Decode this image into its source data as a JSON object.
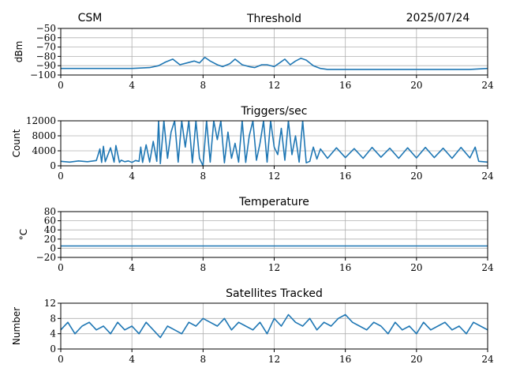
{
  "header": {
    "left_label": "CSM",
    "date": "2025/07/24"
  },
  "colors": {
    "series": "#1f77b4"
  },
  "chart_data": [
    {
      "type": "line",
      "title": "Threshold",
      "xlabel": "",
      "ylabel": "dBm",
      "xlim": [
        0,
        24
      ],
      "ylim": [
        -100,
        -50
      ],
      "xticks": [
        0,
        4,
        8,
        12,
        16,
        20,
        24
      ],
      "yticks": [
        -100,
        -90,
        -80,
        -70,
        -60,
        -50
      ],
      "ytick_labels": [
        "−100",
        "−90",
        "−80",
        "−70",
        "−60",
        "−50"
      ],
      "grid": true,
      "series": [
        {
          "x": [
            0,
            1,
            2,
            3,
            4,
            5,
            5.5,
            5.9,
            6.3,
            6.7,
            7.1,
            7.5,
            7.8,
            8.1,
            8.4,
            8.8,
            9.1,
            9.5,
            9.8,
            10.2,
            10.6,
            10.9,
            11.3,
            11.6,
            12.0,
            12.3,
            12.6,
            12.9,
            13.2,
            13.5,
            13.8,
            14.2,
            14.6,
            15,
            16,
            17,
            18,
            19,
            20,
            21,
            22,
            23,
            24
          ],
          "y": [
            -93,
            -93,
            -93,
            -93,
            -93,
            -92,
            -90,
            -86,
            -83,
            -89,
            -87,
            -85,
            -87,
            -81,
            -85,
            -89,
            -91,
            -88,
            -83,
            -89,
            -91,
            -92,
            -89,
            -89,
            -91,
            -87,
            -83,
            -89,
            -85,
            -82,
            -84,
            -90,
            -93,
            -94,
            -94,
            -94,
            -94,
            -94,
            -94,
            -94,
            -94,
            -94,
            -93
          ]
        }
      ]
    },
    {
      "type": "line",
      "title": "Triggers/sec",
      "xlabel": "",
      "ylabel": "Count",
      "xlim": [
        0,
        24
      ],
      "ylim": [
        0,
        12000
      ],
      "xticks": [
        0,
        4,
        8,
        12,
        16,
        20,
        24
      ],
      "yticks": [
        0,
        4000,
        8000,
        12000
      ],
      "ytick_labels": [
        "0",
        "4000",
        "8000",
        "12000"
      ],
      "grid": true,
      "series": [
        {
          "x": [
            0,
            0.5,
            1,
            1.5,
            2,
            2.2,
            2.3,
            2.4,
            2.5,
            2.8,
            3.0,
            3.1,
            3.3,
            3.4,
            3.6,
            3.8,
            4.0,
            4.2,
            4.4,
            4.5,
            4.6,
            4.8,
            5.0,
            5.2,
            5.4,
            5.5,
            5.6,
            5.8,
            6.0,
            6.2,
            6.4,
            6.6,
            6.8,
            7.0,
            7.2,
            7.4,
            7.6,
            7.8,
            8.0,
            8.2,
            8.4,
            8.6,
            8.8,
            9.0,
            9.2,
            9.4,
            9.6,
            9.8,
            10.0,
            10.2,
            10.4,
            10.6,
            10.8,
            11.0,
            11.2,
            11.4,
            11.6,
            11.8,
            12.0,
            12.2,
            12.4,
            12.6,
            12.8,
            13.0,
            13.2,
            13.4,
            13.6,
            13.8,
            14.0,
            14.2,
            14.4,
            14.6,
            15,
            15.5,
            16,
            16.5,
            17,
            17.5,
            18,
            18.5,
            19,
            19.5,
            20,
            20.5,
            21,
            21.5,
            22,
            22.5,
            23,
            23.3,
            23.5,
            24
          ],
          "y": [
            1200,
            1000,
            1300,
            1100,
            1400,
            4500,
            900,
            5200,
            1100,
            4800,
            1000,
            5400,
            900,
            1500,
            1100,
            1300,
            900,
            1400,
            1200,
            5000,
            900,
            5600,
            1000,
            6500,
            1200,
            12000,
            600,
            12000,
            2000,
            9000,
            12000,
            1000,
            12000,
            5000,
            12000,
            800,
            12000,
            2000,
            0,
            12000,
            1000,
            12000,
            7000,
            12000,
            800,
            9000,
            2000,
            6000,
            1000,
            12000,
            900,
            8000,
            12000,
            1500,
            6000,
            12000,
            1000,
            12000,
            5000,
            3000,
            10000,
            1500,
            12000,
            3000,
            8000,
            1000,
            12000,
            800,
            1200,
            5000,
            1800,
            4500,
            2000,
            4800,
            2200,
            4600,
            2000,
            4900,
            2300,
            4700,
            2000,
            4800,
            2100,
            4900,
            2200,
            4700,
            2000,
            4900,
            2100,
            5000,
            1200,
            1000
          ]
        }
      ]
    },
    {
      "type": "line",
      "title": "Temperature",
      "xlabel": "",
      "ylabel": "°C",
      "xlim": [
        0,
        24
      ],
      "ylim": [
        -20,
        80
      ],
      "xticks": [
        0,
        4,
        8,
        12,
        16,
        20,
        24
      ],
      "yticks": [
        -20,
        0,
        20,
        40,
        60,
        80
      ],
      "ytick_labels": [
        "−20",
        "0",
        "20",
        "40",
        "60",
        "80"
      ],
      "grid": true,
      "series": [
        {
          "x": [
            0,
            24
          ],
          "y": [
            5,
            5
          ]
        }
      ]
    },
    {
      "type": "line",
      "title": "Satellites Tracked",
      "xlabel": "",
      "ylabel": "Number",
      "xlim": [
        0,
        24
      ],
      "ylim": [
        0,
        12
      ],
      "xticks": [
        0,
        4,
        8,
        12,
        16,
        20,
        24
      ],
      "yticks": [
        0,
        4,
        8,
        12
      ],
      "ytick_labels": [
        "0",
        "4",
        "8",
        "12"
      ],
      "grid": true,
      "series": [
        {
          "x": [
            0,
            0.4,
            0.8,
            1.2,
            1.6,
            2.0,
            2.4,
            2.8,
            3.2,
            3.6,
            4.0,
            4.4,
            4.8,
            5.2,
            5.6,
            6.0,
            6.4,
            6.8,
            7.2,
            7.6,
            8.0,
            8.4,
            8.8,
            9.2,
            9.6,
            10.0,
            10.4,
            10.8,
            11.2,
            11.6,
            12.0,
            12.4,
            12.8,
            13.2,
            13.6,
            14.0,
            14.4,
            14.8,
            15.2,
            15.6,
            16.0,
            16.4,
            16.8,
            17.2,
            17.6,
            18.0,
            18.4,
            18.8,
            19.2,
            19.6,
            20.0,
            20.4,
            20.8,
            21.2,
            21.6,
            22.0,
            22.4,
            22.8,
            23.2,
            23.6,
            24.0
          ],
          "y": [
            5,
            7,
            4,
            6,
            7,
            5,
            6,
            4,
            7,
            5,
            6,
            4,
            7,
            5,
            3,
            6,
            5,
            4,
            7,
            6,
            8,
            7,
            6,
            8,
            5,
            7,
            6,
            5,
            7,
            4,
            8,
            6,
            9,
            7,
            6,
            8,
            5,
            7,
            6,
            8,
            9,
            7,
            6,
            5,
            7,
            6,
            4,
            7,
            5,
            6,
            4,
            7,
            5,
            6,
            7,
            5,
            6,
            4,
            7,
            6,
            5
          ]
        }
      ]
    }
  ]
}
